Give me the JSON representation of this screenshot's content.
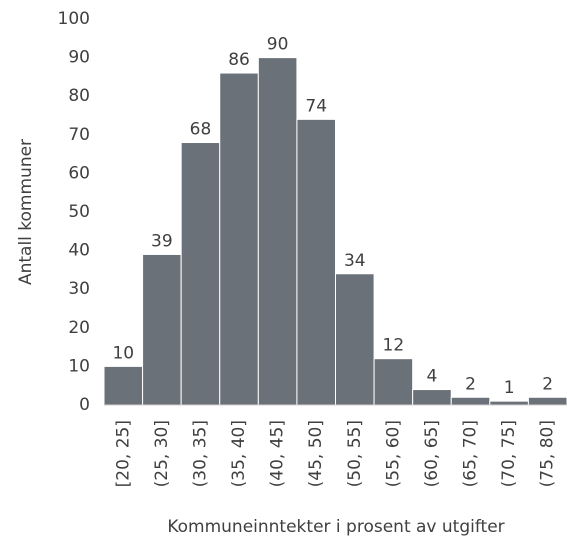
{
  "chart_data": {
    "type": "bar",
    "x_label": "Kommuneinntekter i prosent av utgifter",
    "y_label": "Antall kommuner",
    "categories": [
      "[20, 25]",
      "(25, 30]",
      "(30, 35]",
      "(35, 40]",
      "(40, 45]",
      "(45, 50]",
      "(50, 55]",
      "(55, 60]",
      "(60, 65]",
      "(65, 70]",
      "(70, 75]",
      "(75, 80]"
    ],
    "values": [
      10,
      39,
      68,
      86,
      90,
      74,
      34,
      12,
      4,
      2,
      1,
      2
    ],
    "color": "#6b7179",
    "ylim": [
      0,
      100
    ],
    "yticks": [
      0,
      10,
      20,
      30,
      40,
      50,
      60,
      70,
      80,
      90,
      100
    ],
    "grid": false
  }
}
